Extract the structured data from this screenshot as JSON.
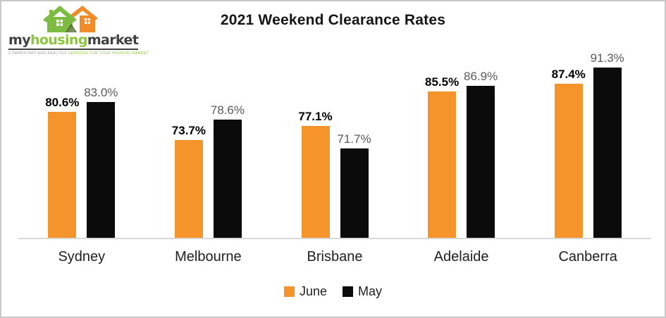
{
  "logo": {
    "brand": {
      "my": "my",
      "housing": "housing",
      "market": "market"
    },
    "tagline_left": "COMMENTARY AND ANALYSIS",
    "tagline_right": "SERVICES FOR YOUR HOUSING MARKET",
    "colors": {
      "green": "#8CC63E",
      "dark": "#414042",
      "orange": "#F28C28"
    }
  },
  "chart_data": {
    "type": "bar",
    "title": "2021 Weekend Clearance Rates",
    "categories": [
      "Sydney",
      "Melbourne",
      "Brisbane",
      "Adelaide",
      "Canberra"
    ],
    "series": [
      {
        "name": "June",
        "color": "#F4942A",
        "values": [
          80.6,
          73.7,
          77.1,
          85.5,
          87.4
        ]
      },
      {
        "name": "May",
        "color": "#0B0B0B",
        "values": [
          83.0,
          78.6,
          71.7,
          86.9,
          91.3
        ]
      }
    ],
    "value_suffix": "%",
    "ylim": [
      50,
      95
    ],
    "grid": false,
    "legend_position": "bottom",
    "axis_line_color": "#D9D9D9",
    "value_label_colors": {
      "June": "#000000",
      "May": "#595959"
    }
  }
}
